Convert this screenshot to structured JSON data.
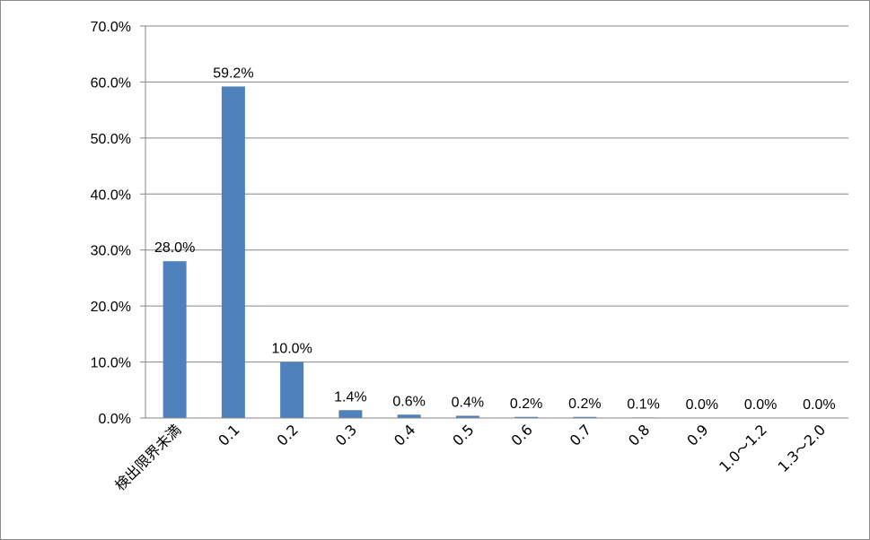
{
  "chart_data": {
    "type": "bar",
    "categories": [
      "検出限界未満",
      "0.1",
      "0.2",
      "0.3",
      "0.4",
      "0.5",
      "0.6",
      "0.7",
      "0.8",
      "0.9",
      "1.0～1.2",
      "1.3～2.0"
    ],
    "values": [
      28.0,
      59.2,
      10.0,
      1.4,
      0.6,
      0.4,
      0.2,
      0.2,
      0.1,
      0.0,
      0.0,
      0.0
    ],
    "data_labels": [
      "28.0%",
      "59.2%",
      "10.0%",
      "1.4%",
      "0.6%",
      "0.4%",
      "0.2%",
      "0.2%",
      "0.1%",
      "0.0%",
      "0.0%",
      "0.0%"
    ],
    "y_ticks": [
      "0.0%",
      "10.0%",
      "20.0%",
      "30.0%",
      "40.0%",
      "50.0%",
      "60.0%",
      "70.0%"
    ],
    "title": "",
    "xlabel": "",
    "ylabel": "",
    "ylim": [
      0,
      70
    ],
    "grid": true,
    "legend": "none",
    "bar_color": "#4f81bd",
    "grid_color": "#868686",
    "axis_color": "#868686"
  }
}
